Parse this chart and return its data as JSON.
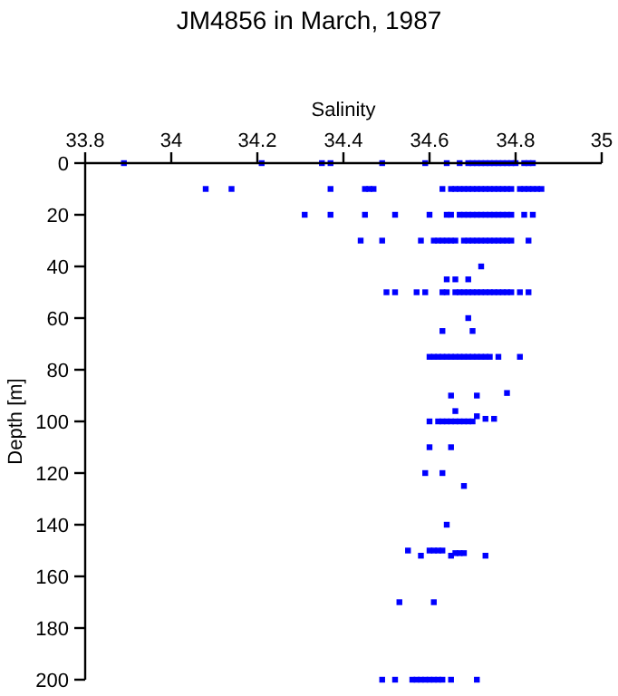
{
  "chart_data": {
    "type": "scatter",
    "title": "JM4856 in March, 1987",
    "xlabel": "Salinity",
    "ylabel": "Depth [m]",
    "xlim": [
      33.8,
      35
    ],
    "xticks": [
      33.8,
      34,
      34.2,
      34.4,
      34.6,
      34.8,
      35
    ],
    "ylim": [
      200,
      0
    ],
    "yticks": [
      0,
      20,
      40,
      60,
      80,
      100,
      120,
      140,
      160,
      180,
      200
    ],
    "grid": false,
    "marker": "square",
    "series": [
      {
        "color": "#0000ff",
        "x": [
          33.89,
          34.21,
          34.35,
          34.37,
          34.49,
          34.59,
          34.64,
          34.67,
          34.69,
          34.7,
          34.71,
          34.72,
          34.73,
          34.74,
          34.75,
          34.76,
          34.77,
          34.78,
          34.79,
          34.8,
          34.82,
          34.83,
          34.84,
          34.08,
          34.14,
          34.37,
          34.45,
          34.46,
          34.47,
          34.63,
          34.65,
          34.66,
          34.67,
          34.68,
          34.69,
          34.7,
          34.71,
          34.72,
          34.73,
          34.74,
          34.75,
          34.76,
          34.77,
          34.78,
          34.79,
          34.81,
          34.82,
          34.83,
          34.84,
          34.85,
          34.86,
          34.31,
          34.37,
          34.45,
          34.52,
          34.6,
          34.64,
          34.65,
          34.67,
          34.68,
          34.69,
          34.7,
          34.71,
          34.72,
          34.73,
          34.74,
          34.75,
          34.76,
          34.77,
          34.78,
          34.79,
          34.82,
          34.84,
          34.44,
          34.49,
          34.58,
          34.61,
          34.62,
          34.63,
          34.64,
          34.65,
          34.66,
          34.68,
          34.69,
          34.7,
          34.71,
          34.72,
          34.73,
          34.74,
          34.75,
          34.76,
          34.77,
          34.78,
          34.79,
          34.83,
          34.72,
          34.64,
          34.66,
          34.69,
          34.5,
          34.52,
          34.57,
          34.59,
          34.63,
          34.64,
          34.66,
          34.67,
          34.68,
          34.69,
          34.7,
          34.71,
          34.72,
          34.73,
          34.74,
          34.75,
          34.76,
          34.77,
          34.78,
          34.79,
          34.81,
          34.83,
          34.69,
          34.63,
          34.7,
          34.6,
          34.61,
          34.62,
          34.63,
          34.64,
          34.65,
          34.66,
          34.67,
          34.68,
          34.69,
          34.7,
          34.71,
          34.72,
          34.73,
          34.74,
          34.76,
          34.81,
          34.78,
          34.65,
          34.71,
          34.66,
          34.71,
          34.73,
          34.75,
          34.6,
          34.62,
          34.63,
          34.64,
          34.65,
          34.66,
          34.67,
          34.68,
          34.69,
          34.7,
          34.6,
          34.65,
          34.59,
          34.63,
          34.68,
          34.64,
          34.55,
          34.6,
          34.61,
          34.62,
          34.63,
          34.66,
          34.67,
          34.68,
          34.58,
          34.65,
          34.73,
          34.53,
          34.61,
          34.49,
          34.52,
          34.56,
          34.57,
          34.58,
          34.59,
          34.6,
          34.61,
          34.62,
          34.63,
          34.65,
          34.71
        ],
        "values": [
          0,
          0,
          0,
          0,
          0,
          0,
          0,
          0,
          0,
          0,
          0,
          0,
          0,
          0,
          0,
          0,
          0,
          0,
          0,
          0,
          0,
          0,
          0,
          10,
          10,
          10,
          10,
          10,
          10,
          10,
          10,
          10,
          10,
          10,
          10,
          10,
          10,
          10,
          10,
          10,
          10,
          10,
          10,
          10,
          10,
          10,
          10,
          10,
          10,
          10,
          10,
          20,
          20,
          20,
          20,
          20,
          20,
          20,
          20,
          20,
          20,
          20,
          20,
          20,
          20,
          20,
          20,
          20,
          20,
          20,
          20,
          20,
          20,
          30,
          30,
          30,
          30,
          30,
          30,
          30,
          30,
          30,
          30,
          30,
          30,
          30,
          30,
          30,
          30,
          30,
          30,
          30,
          30,
          30,
          30,
          40,
          45,
          45,
          45,
          50,
          50,
          50,
          50,
          50,
          50,
          50,
          50,
          50,
          50,
          50,
          50,
          50,
          50,
          50,
          50,
          50,
          50,
          50,
          50,
          50,
          50,
          60,
          65,
          65,
          75,
          75,
          75,
          75,
          75,
          75,
          75,
          75,
          75,
          75,
          75,
          75,
          75,
          75,
          75,
          75,
          75,
          89,
          90,
          90,
          96,
          98,
          99,
          99,
          100,
          100,
          100,
          100,
          100,
          100,
          100,
          100,
          100,
          100,
          110,
          110,
          120,
          120,
          125,
          140,
          150,
          150,
          150,
          150,
          150,
          151,
          151,
          151,
          152,
          152,
          152,
          170,
          170,
          200,
          200,
          200,
          200,
          200,
          200,
          200,
          200,
          200,
          200,
          200,
          200
        ]
      }
    ]
  }
}
